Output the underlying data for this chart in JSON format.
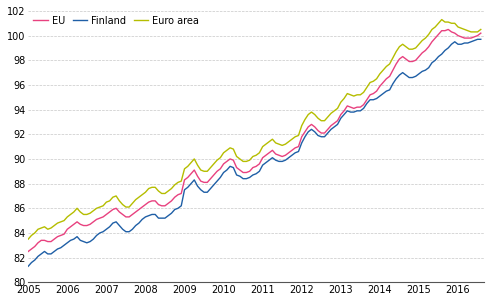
{
  "title": "",
  "ylabel": "",
  "xlabel": "",
  "ylim": [
    80,
    102
  ],
  "yticks": [
    80,
    82,
    84,
    86,
    88,
    90,
    92,
    94,
    96,
    98,
    100,
    102
  ],
  "line_colors": {
    "EU": "#e8417f",
    "Finland": "#1f5fa6",
    "Euro area": "#b5bd00"
  },
  "legend_labels": [
    "EU",
    "Finland",
    "Euro area"
  ],
  "background_color": "#ffffff",
  "grid_color": "#c8c8c8",
  "start_year": 2005,
  "n_months": 140,
  "finland": [
    81.3,
    81.6,
    81.8,
    82.1,
    82.3,
    82.5,
    82.3,
    82.3,
    82.5,
    82.7,
    82.8,
    83.0,
    83.2,
    83.4,
    83.5,
    83.7,
    83.4,
    83.3,
    83.2,
    83.3,
    83.5,
    83.8,
    84.0,
    84.1,
    84.3,
    84.5,
    84.8,
    84.9,
    84.6,
    84.3,
    84.1,
    84.1,
    84.3,
    84.6,
    84.8,
    85.1,
    85.3,
    85.4,
    85.5,
    85.5,
    85.2,
    85.2,
    85.2,
    85.4,
    85.6,
    85.9,
    86.0,
    86.2,
    87.5,
    87.7,
    88.0,
    88.3,
    87.8,
    87.5,
    87.3,
    87.3,
    87.6,
    87.9,
    88.2,
    88.5,
    88.9,
    89.1,
    89.4,
    89.3,
    88.7,
    88.6,
    88.4,
    88.4,
    88.5,
    88.7,
    88.8,
    89.0,
    89.5,
    89.7,
    89.9,
    90.1,
    89.9,
    89.8,
    89.8,
    89.9,
    90.1,
    90.3,
    90.5,
    90.6,
    91.3,
    91.8,
    92.2,
    92.4,
    92.2,
    91.9,
    91.8,
    91.8,
    92.1,
    92.4,
    92.6,
    92.8,
    93.3,
    93.6,
    93.9,
    93.8,
    93.8,
    93.9,
    93.9,
    94.1,
    94.5,
    94.8,
    94.8,
    94.9,
    95.1,
    95.3,
    95.5,
    95.6,
    96.1,
    96.5,
    96.8,
    97.0,
    96.8,
    96.6,
    96.6,
    96.7,
    96.9,
    97.1,
    97.2,
    97.4,
    97.8,
    98.0,
    98.3,
    98.5,
    98.8,
    99.0,
    99.3,
    99.5,
    99.3,
    99.3,
    99.4,
    99.4,
    99.5,
    99.6,
    99.7,
    99.7
  ],
  "eu": [
    82.5,
    82.7,
    82.9,
    83.2,
    83.4,
    83.4,
    83.3,
    83.3,
    83.5,
    83.7,
    83.8,
    83.9,
    84.3,
    84.5,
    84.7,
    84.9,
    84.7,
    84.6,
    84.6,
    84.7,
    84.9,
    85.1,
    85.2,
    85.3,
    85.5,
    85.7,
    85.9,
    86.0,
    85.7,
    85.5,
    85.3,
    85.3,
    85.5,
    85.7,
    85.9,
    86.1,
    86.3,
    86.5,
    86.6,
    86.6,
    86.3,
    86.2,
    86.2,
    86.4,
    86.6,
    86.9,
    87.1,
    87.2,
    88.3,
    88.5,
    88.8,
    89.1,
    88.6,
    88.2,
    88.1,
    88.1,
    88.4,
    88.7,
    89.0,
    89.2,
    89.6,
    89.8,
    90.0,
    89.9,
    89.3,
    89.1,
    88.9,
    88.9,
    89.0,
    89.3,
    89.4,
    89.6,
    90.1,
    90.3,
    90.5,
    90.7,
    90.4,
    90.3,
    90.2,
    90.3,
    90.5,
    90.7,
    90.9,
    91.0,
    91.8,
    92.2,
    92.6,
    92.8,
    92.6,
    92.3,
    92.1,
    92.1,
    92.4,
    92.7,
    92.9,
    93.1,
    93.6,
    93.9,
    94.3,
    94.2,
    94.1,
    94.2,
    94.2,
    94.4,
    94.8,
    95.2,
    95.3,
    95.5,
    95.9,
    96.2,
    96.5,
    96.7,
    97.2,
    97.7,
    98.1,
    98.3,
    98.1,
    97.9,
    97.9,
    98.0,
    98.3,
    98.6,
    98.8,
    99.1,
    99.5,
    99.8,
    100.1,
    100.4,
    100.4,
    100.5,
    100.3,
    100.2,
    100.0,
    99.9,
    99.8,
    99.8,
    99.8,
    99.9,
    100.0,
    100.2
  ],
  "euro_area": [
    83.5,
    83.8,
    84.0,
    84.3,
    84.4,
    84.5,
    84.3,
    84.4,
    84.6,
    84.8,
    84.9,
    85.0,
    85.3,
    85.5,
    85.7,
    86.0,
    85.7,
    85.5,
    85.5,
    85.6,
    85.8,
    86.0,
    86.1,
    86.2,
    86.5,
    86.6,
    86.9,
    87.0,
    86.6,
    86.3,
    86.1,
    86.1,
    86.4,
    86.7,
    86.9,
    87.1,
    87.3,
    87.6,
    87.7,
    87.7,
    87.4,
    87.2,
    87.2,
    87.4,
    87.6,
    87.9,
    88.1,
    88.2,
    89.2,
    89.4,
    89.7,
    90.0,
    89.5,
    89.1,
    89.0,
    89.0,
    89.3,
    89.6,
    89.9,
    90.1,
    90.5,
    90.7,
    90.9,
    90.8,
    90.2,
    90.0,
    89.8,
    89.8,
    89.9,
    90.2,
    90.3,
    90.5,
    91.0,
    91.2,
    91.4,
    91.6,
    91.3,
    91.2,
    91.1,
    91.2,
    91.4,
    91.6,
    91.8,
    91.9,
    92.7,
    93.2,
    93.6,
    93.8,
    93.6,
    93.3,
    93.1,
    93.1,
    93.4,
    93.7,
    93.9,
    94.1,
    94.6,
    94.9,
    95.3,
    95.2,
    95.1,
    95.2,
    95.2,
    95.4,
    95.8,
    96.2,
    96.3,
    96.5,
    96.9,
    97.2,
    97.5,
    97.7,
    98.2,
    98.7,
    99.1,
    99.3,
    99.1,
    98.9,
    98.9,
    99.0,
    99.3,
    99.6,
    99.8,
    100.1,
    100.5,
    100.7,
    101.0,
    101.3,
    101.1,
    101.1,
    101.0,
    101.0,
    100.7,
    100.6,
    100.5,
    100.4,
    100.3,
    100.3,
    100.3,
    100.5
  ]
}
